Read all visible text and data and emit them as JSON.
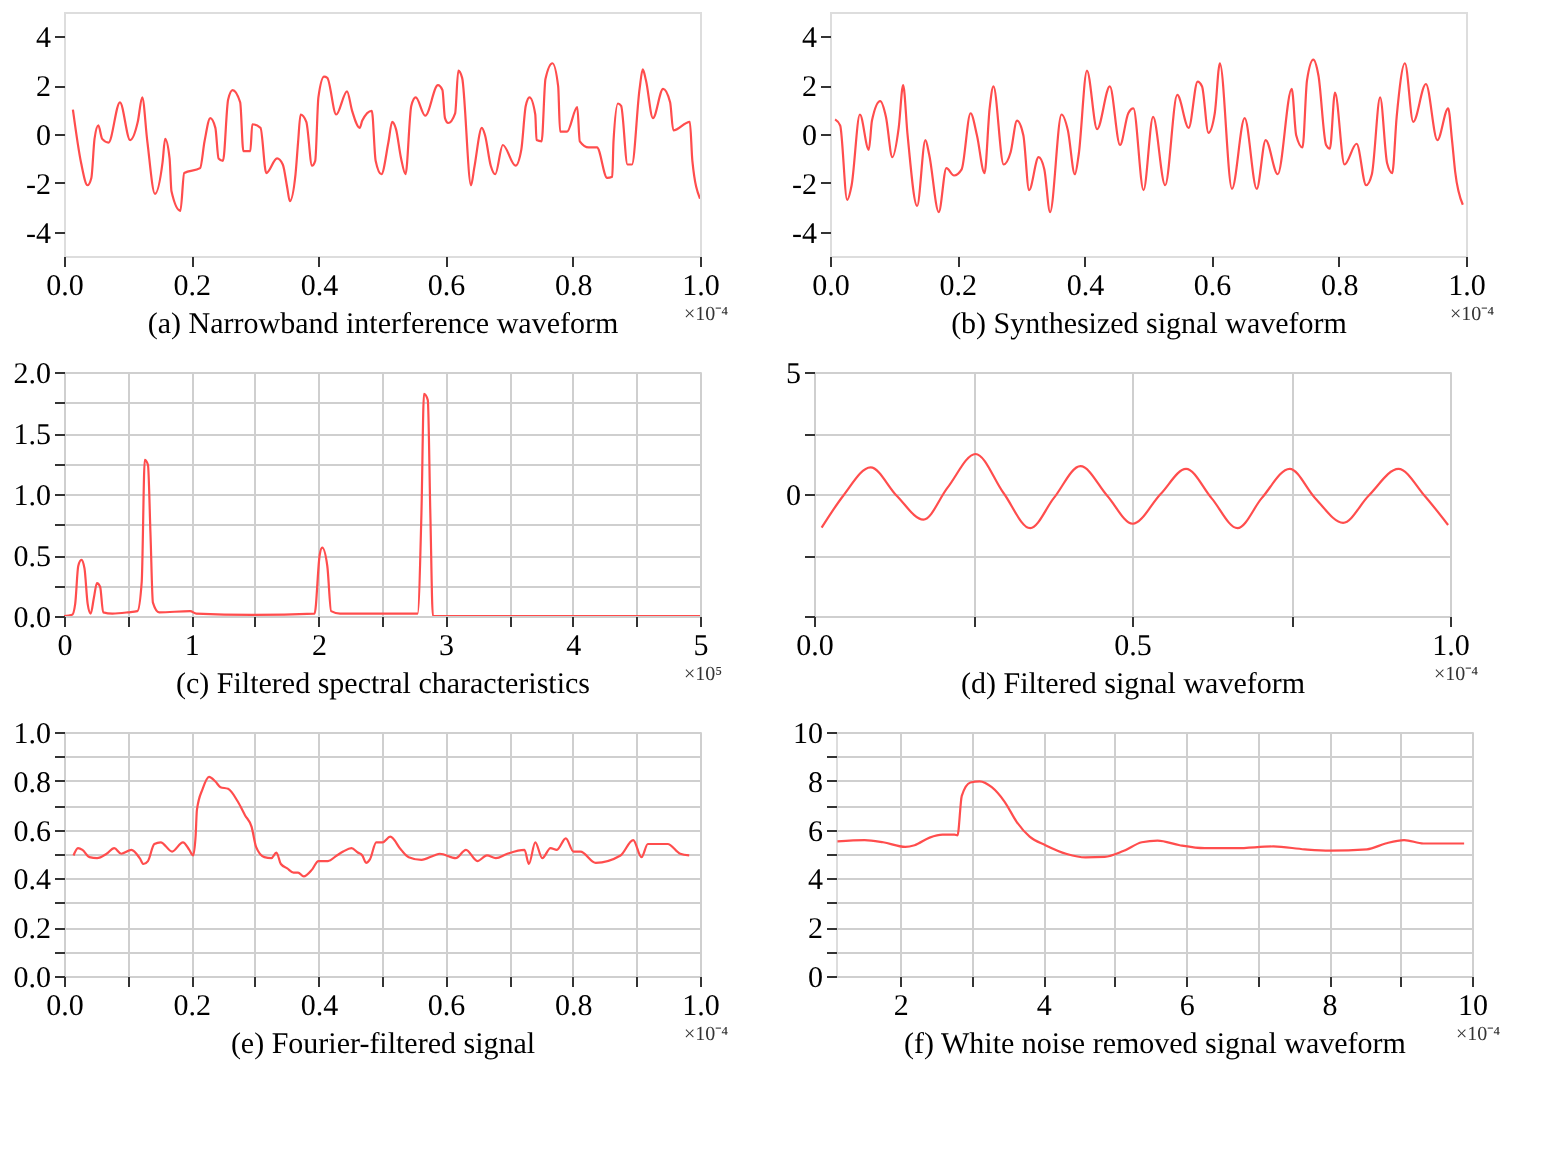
{
  "chart_data": [
    {
      "type": "line",
      "xlabel": "(a) Narrowband interference waveform",
      "annotations": [
        "×10⁻⁴"
      ],
      "grid": false,
      "xlim": [
        0,
        1.0
      ],
      "ylim": [
        -5,
        5
      ],
      "xticks": [
        {
          "value": 0,
          "label": "0.0"
        },
        0.2,
        0.4,
        0.6,
        0.8,
        {
          "value": 1.0,
          "label": "1.0"
        }
      ],
      "yticks": [
        -4,
        -2,
        0,
        2,
        4
      ],
      "series": [
        {
          "color": "#ff4d4d",
          "x": [
            0.014,
            0.027,
            0.037,
            0.043,
            0.048,
            0.054,
            0.06,
            0.07,
            0.088,
            0.104,
            0.116,
            0.123,
            0.131,
            0.143,
            0.155,
            0.159,
            0.166,
            0.169,
            0.183,
            0.189,
            0.214,
            0.221,
            0.23,
            0.238,
            0.243,
            0.25,
            0.258,
            0.265,
            0.277,
            0.282,
            0.293,
            0.296,
            0.309,
            0.318,
            0.335,
            0.344,
            0.351,
            0.355,
            0.364,
            0.368,
            0.372,
            0.381,
            0.39,
            0.395,
            0.4,
            0.409,
            0.414,
            0.428,
            0.445,
            0.453,
            0.465,
            0.469,
            0.484,
            0.49,
            0.499,
            0.51,
            0.516,
            0.522,
            0.53,
            0.537,
            0.546,
            0.553,
            0.568,
            0.588,
            0.595,
            0.599,
            0.604,
            0.615,
            0.62,
            0.626,
            0.64,
            0.645,
            0.657,
            0.662,
            0.671,
            0.678,
            0.69,
            0.71,
            0.719,
            0.726,
            0.732,
            0.741,
            0.743,
            0.751,
            0.757,
            0.768,
            0.777,
            0.78,
            0.791,
            0.807,
            0.811,
            0.825,
            0.838,
            0.854,
            0.862,
            0.864,
            0.871,
            0.876,
            0.886,
            0.893,
            0.905,
            0.91,
            0.915,
            0.926,
            0.942,
            0.953,
            0.958,
            0.984,
            0.988,
            1.0
          ],
          "values": [
            1.0,
            -1.2,
            -2.1,
            -1.8,
            -0.2,
            0.35,
            -0.2,
            -0.35,
            1.3,
            -0.25,
            0.5,
            1.5,
            -0.3,
            -2.45,
            -1.15,
            -0.2,
            -1.0,
            -2.35,
            -3.15,
            -1.6,
            -1.4,
            -0.3,
            0.65,
            0.25,
            -1.0,
            -1.1,
            1.4,
            1.8,
            1.3,
            -0.7,
            -0.7,
            0.4,
            0.25,
            -1.6,
            -1.0,
            -1.25,
            -2.2,
            -2.75,
            -1.65,
            -0.35,
            0.8,
            0.5,
            -1.3,
            -1.1,
            1.5,
            2.35,
            2.3,
            0.8,
            1.75,
            0.95,
            0.25,
            0.55,
            0.95,
            -1.1,
            -1.65,
            -0.35,
            0.5,
            0.2,
            -1.0,
            -1.65,
            1.15,
            1.5,
            0.75,
            2.0,
            1.8,
            0.65,
            0.45,
            0.85,
            2.6,
            2.3,
            -2.1,
            -1.4,
            0.25,
            -0.05,
            -1.3,
            -1.65,
            -0.45,
            -1.3,
            -0.65,
            1.15,
            1.5,
            0.8,
            -0.25,
            -0.3,
            2.25,
            2.9,
            1.95,
            0.1,
            0.1,
            1.1,
            -0.3,
            -0.55,
            -0.55,
            -1.8,
            -1.75,
            -0.3,
            1.25,
            1.15,
            -1.25,
            -1.25,
            1.85,
            2.65,
            2.2,
            0.65,
            1.85,
            1.3,
            0.15,
            0.5,
            -1.1,
            -2.65
          ]
        }
      ]
    },
    {
      "type": "line",
      "xlabel": "(b) Synthesized signal waveform",
      "annotations": [
        "×10⁻⁴"
      ],
      "grid": false,
      "xlim": [
        0,
        1.0
      ],
      "ylim": [
        -5,
        5
      ],
      "xticks": [
        {
          "value": 0,
          "label": "0.0"
        },
        0.2,
        0.4,
        0.6,
        0.8,
        {
          "value": 1.0,
          "label": "1.0"
        }
      ],
      "yticks": [
        -4,
        -2,
        0,
        2,
        4
      ],
      "series": [
        {
          "color": "#ff4d4d",
          "x": [
            0.008,
            0.016,
            0.027,
            0.034,
            0.047,
            0.061,
            0.066,
            0.079,
            0.088,
            0.098,
            0.108,
            0.115,
            0.122,
            0.137,
            0.15,
            0.156,
            0.171,
            0.183,
            0.195,
            0.207,
            0.221,
            0.231,
            0.243,
            0.251,
            0.257,
            0.273,
            0.284,
            0.294,
            0.304,
            0.313,
            0.328,
            0.337,
            0.346,
            0.364,
            0.374,
            0.385,
            0.391,
            0.404,
            0.42,
            0.44,
            0.456,
            0.469,
            0.477,
            0.493,
            0.508,
            0.527,
            0.546,
            0.564,
            0.578,
            0.585,
            0.595,
            0.605,
            0.613,
            0.632,
            0.652,
            0.671,
            0.685,
            0.704,
            0.726,
            0.733,
            0.743,
            0.75,
            0.76,
            0.768,
            0.78,
            0.786,
            0.794,
            0.809,
            0.828,
            0.843,
            0.852,
            0.865,
            0.876,
            0.884,
            0.891,
            0.904,
            0.917,
            0.937,
            0.955,
            0.972,
            0.978,
            0.983,
            0.995
          ],
          "values": [
            0.6,
            0.35,
            -2.7,
            -2.1,
            0.8,
            -0.65,
            0.55,
            1.35,
            0.7,
            -0.95,
            0.25,
            2.0,
            -0.05,
            -2.95,
            -0.25,
            -0.85,
            -3.2,
            -1.4,
            -1.7,
            -1.45,
            0.85,
            -0.05,
            -1.6,
            1.05,
            1.95,
            -1.25,
            -0.75,
            0.55,
            -0.05,
            -2.3,
            -0.95,
            -1.45,
            -3.2,
            0.8,
            0.15,
            -1.65,
            -0.85,
            2.6,
            0.2,
            1.95,
            -0.45,
            0.85,
            1.05,
            -2.3,
            0.7,
            -2.1,
            1.6,
            0.25,
            2.15,
            1.95,
            0.05,
            0.85,
            2.9,
            -2.25,
            0.65,
            -2.25,
            -0.25,
            -1.65,
            1.85,
            -0.05,
            -0.55,
            2.2,
            3.05,
            2.4,
            -0.45,
            -0.6,
            1.7,
            -1.25,
            -0.4,
            -2.1,
            -1.65,
            1.5,
            -1.2,
            -1.6,
            0.7,
            2.9,
            0.5,
            2.05,
            -0.25,
            1.05,
            -0.25,
            -1.55,
            -2.9
          ]
        }
      ]
    },
    {
      "type": "line",
      "xlabel": "(c) Filtered spectral characteristics",
      "annotations": [
        "×10⁵"
      ],
      "grid": true,
      "xlim": [
        0,
        5
      ],
      "ylim": [
        0,
        2.0
      ],
      "xticks": [
        0,
        {
          "value": 0.5,
          "label": null
        },
        1,
        {
          "value": 1.5,
          "label": null
        },
        2,
        {
          "value": 2.5,
          "label": null
        },
        3,
        {
          "value": 3.5,
          "label": null
        },
        4,
        {
          "value": 4.5,
          "label": null
        },
        5
      ],
      "yticks": [
        {
          "value": 0,
          "label": "0.0"
        },
        {
          "value": 0.25,
          "label": null
        },
        0.5,
        {
          "value": 0.75,
          "label": null
        },
        {
          "value": 1.0,
          "label": "1.0"
        },
        {
          "value": 1.25,
          "label": null
        },
        1.5,
        {
          "value": 1.75,
          "label": null
        },
        {
          "value": 2.0,
          "label": "2.0"
        }
      ],
      "series": [
        {
          "color": "#ff4d4d",
          "x": [
            0,
            0.064,
            0.088,
            0.112,
            0.137,
            0.161,
            0.186,
            0.21,
            0.235,
            0.259,
            0.284,
            0.308,
            0.381,
            0.503,
            0.577,
            0.611,
            0.635,
            0.66,
            0.68,
            0.699,
            0.748,
            0.992,
            1.04,
            1.48,
            1.97,
            2.01,
            2.03,
            2.07,
            2.1,
            2.17,
            2.56,
            2.78,
            2.81,
            2.83,
            2.86,
            2.88,
            2.9,
            2.95,
            5.0
          ],
          "values": [
            0,
            0.01,
            0.1,
            0.41,
            0.46,
            0.39,
            0.1,
            0.02,
            0.15,
            0.27,
            0.24,
            0.03,
            0.02,
            0.03,
            0.04,
            0.28,
            1.28,
            1.24,
            0.67,
            0.11,
            0.03,
            0.04,
            0.02,
            0.01,
            0.02,
            0.5,
            0.56,
            0.41,
            0.04,
            0.02,
            0.02,
            0.02,
            0.84,
            1.82,
            1.77,
            0.84,
            0,
            0,
            0
          ]
        }
      ]
    },
    {
      "type": "line",
      "xlabel": "(d) Filtered signal waveform",
      "annotations": [
        "×10⁻⁴"
      ],
      "grid": true,
      "xlim": [
        0,
        1.0
      ],
      "ylim": [
        -5,
        5
      ],
      "xticks": [
        {
          "value": 0,
          "label": "0.0"
        },
        {
          "value": 0.25,
          "label": null
        },
        0.5,
        {
          "value": 0.75,
          "label": null
        },
        {
          "value": 1.0,
          "label": "1.0"
        }
      ],
      "yticks": [
        {
          "value": -5,
          "label": null
        },
        {
          "value": -2.5,
          "label": null
        },
        0,
        {
          "value": 2.5,
          "label": null
        },
        5
      ],
      "series": [
        {
          "color": "#ff4d4d",
          "x": [
            0.012,
            0.046,
            0.089,
            0.13,
            0.172,
            0.21,
            0.254,
            0.298,
            0.34,
            0.377,
            0.419,
            0.461,
            0.501,
            0.545,
            0.585,
            0.625,
            0.666,
            0.704,
            0.748,
            0.788,
            0.832,
            0.872,
            0.919,
            0.96,
            0.997
          ],
          "values": [
            -1.38,
            -0.07,
            1.09,
            -0.07,
            -1.05,
            0.26,
            1.64,
            0.04,
            -1.4,
            -0.17,
            1.14,
            -0.07,
            -1.22,
            0.0,
            1.03,
            -0.17,
            -1.4,
            -0.17,
            1.03,
            -0.17,
            -1.18,
            -0.07,
            1.03,
            -0.07,
            -1.27
          ]
        }
      ]
    },
    {
      "type": "line",
      "xlabel": "(e) Fourier-filtered  signal",
      "annotations": [
        "×10⁻⁴"
      ],
      "grid": true,
      "xlim": [
        0,
        1.0
      ],
      "ylim": [
        0,
        1.0
      ],
      "xticks": [
        {
          "value": 0,
          "label": "0.0"
        },
        {
          "value": 0.1,
          "label": null
        },
        0.2,
        {
          "value": 0.3,
          "label": null
        },
        0.4,
        {
          "value": 0.5,
          "label": null
        },
        0.6,
        {
          "value": 0.7,
          "label": null
        },
        0.8,
        {
          "value": 0.9,
          "label": null
        },
        {
          "value": 1.0,
          "label": "1.0"
        }
      ],
      "yticks": [
        {
          "value": 0,
          "label": "0.0"
        },
        {
          "value": 0.1,
          "label": null
        },
        0.2,
        {
          "value": 0.3,
          "label": null
        },
        0.4,
        {
          "value": 0.5,
          "label": null
        },
        0.6,
        {
          "value": 0.7,
          "label": null
        },
        0.8,
        {
          "value": 0.9,
          "label": null
        },
        {
          "value": 1.0,
          "label": "1.0"
        }
      ],
      "series": [
        {
          "color": "#ff4d4d",
          "x": [
            0.015,
            0.022,
            0.029,
            0.04,
            0.052,
            0.067,
            0.079,
            0.09,
            0.106,
            0.119,
            0.125,
            0.132,
            0.142,
            0.152,
            0.17,
            0.187,
            0.197,
            0.203,
            0.207,
            0.209,
            0.218,
            0.228,
            0.238,
            0.246,
            0.258,
            0.273,
            0.285,
            0.295,
            0.302,
            0.315,
            0.326,
            0.334,
            0.341,
            0.351,
            0.361,
            0.368,
            0.377,
            0.39,
            0.4,
            0.415,
            0.429,
            0.439,
            0.452,
            0.462,
            0.469,
            0.475,
            0.481,
            0.491,
            0.501,
            0.513,
            0.53,
            0.542,
            0.562,
            0.582,
            0.591,
            0.616,
            0.632,
            0.65,
            0.665,
            0.679,
            0.697,
            0.724,
            0.731,
            0.741,
            0.752,
            0.765,
            0.775,
            0.789,
            0.801,
            0.812,
            0.836,
            0.875,
            0.895,
            0.908,
            0.918,
            0.949,
            0.969,
            0.983
          ],
          "values": [
            0.494,
            0.524,
            0.517,
            0.487,
            0.483,
            0.501,
            0.524,
            0.501,
            0.517,
            0.483,
            0.459,
            0.471,
            0.541,
            0.548,
            0.51,
            0.548,
            0.517,
            0.494,
            0.576,
            0.681,
            0.767,
            0.816,
            0.797,
            0.774,
            0.767,
            0.716,
            0.657,
            0.611,
            0.529,
            0.487,
            0.483,
            0.506,
            0.459,
            0.441,
            0.424,
            0.424,
            0.408,
            0.436,
            0.471,
            0.471,
            0.494,
            0.51,
            0.524,
            0.506,
            0.494,
            0.464,
            0.478,
            0.548,
            0.548,
            0.571,
            0.517,
            0.487,
            0.476,
            0.494,
            0.501,
            0.483,
            0.517,
            0.471,
            0.494,
            0.483,
            0.501,
            0.517,
            0.459,
            0.548,
            0.483,
            0.524,
            0.517,
            0.564,
            0.51,
            0.51,
            0.464,
            0.494,
            0.557,
            0.487,
            0.541,
            0.541,
            0.501,
            0.494
          ]
        }
      ]
    },
    {
      "type": "line",
      "xlabel": "(f) White noise removed signal waveform",
      "annotations": [
        "×10⁻⁴"
      ],
      "grid": true,
      "xlim": [
        1.1,
        10
      ],
      "ylim": [
        0,
        10
      ],
      "xticks": [
        2,
        {
          "value": 3,
          "label": null
        },
        4,
        {
          "value": 5,
          "label": null
        },
        6,
        {
          "value": 7,
          "label": null
        },
        8,
        {
          "value": 9,
          "label": null
        },
        10
      ],
      "yticks": [
        0,
        {
          "value": 1,
          "label": null
        },
        2,
        {
          "value": 3,
          "label": null
        },
        4,
        {
          "value": 5,
          "label": null
        },
        6,
        {
          "value": 7,
          "label": null
        },
        8,
        {
          "value": 9,
          "label": null
        },
        10
      ],
      "series": [
        {
          "color": "#ff4d4d",
          "x": [
            1.12,
            1.5,
            1.76,
            2.07,
            2.2,
            2.41,
            2.59,
            2.76,
            2.8,
            2.86,
            2.98,
            3.11,
            3.28,
            3.46,
            3.63,
            3.81,
            4.03,
            4.33,
            4.59,
            4.86,
            5.12,
            5.38,
            5.6,
            5.91,
            6.26,
            6.7,
            7.22,
            7.66,
            8.01,
            8.53,
            8.79,
            9.05,
            9.32,
            9.89
          ],
          "values": [
            5.52,
            5.57,
            5.48,
            5.29,
            5.36,
            5.67,
            5.79,
            5.79,
            5.76,
            7.38,
            7.93,
            7.98,
            7.74,
            7.14,
            6.31,
            5.71,
            5.36,
            5.0,
            4.86,
            4.88,
            5.12,
            5.48,
            5.55,
            5.36,
            5.24,
            5.24,
            5.31,
            5.19,
            5.14,
            5.19,
            5.43,
            5.57,
            5.43,
            5.43
          ]
        }
      ]
    }
  ]
}
